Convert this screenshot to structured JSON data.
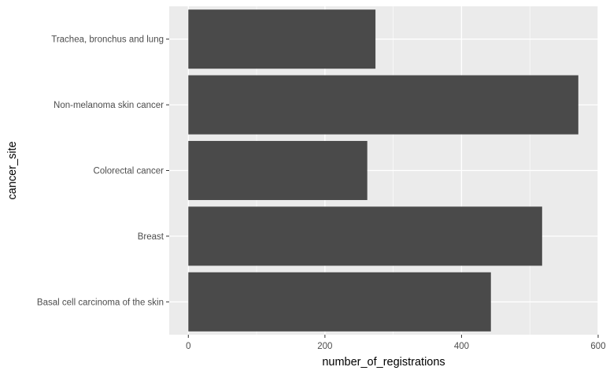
{
  "chart_data": {
    "type": "bar",
    "orientation": "horizontal",
    "categories": [
      "Basal cell carcinoma of the skin",
      "Breast",
      "Colorectal cancer",
      "Non-melanoma skin cancer",
      "Trachea, bronchus and lung"
    ],
    "values": [
      443,
      518,
      262,
      571,
      274
    ],
    "xlabel": "number_of_registrations",
    "ylabel": "cancer_site",
    "xlim": [
      -28,
      600
    ],
    "xticks": [
      "0",
      "200",
      "400",
      "600"
    ],
    "grid": true,
    "legend": "none",
    "colors": {
      "bar": "#4a4a4a",
      "panel": "#ebebeb",
      "grid": "#ffffff",
      "tick_text": "#4d4d4d",
      "tick_mark": "#333333"
    }
  }
}
